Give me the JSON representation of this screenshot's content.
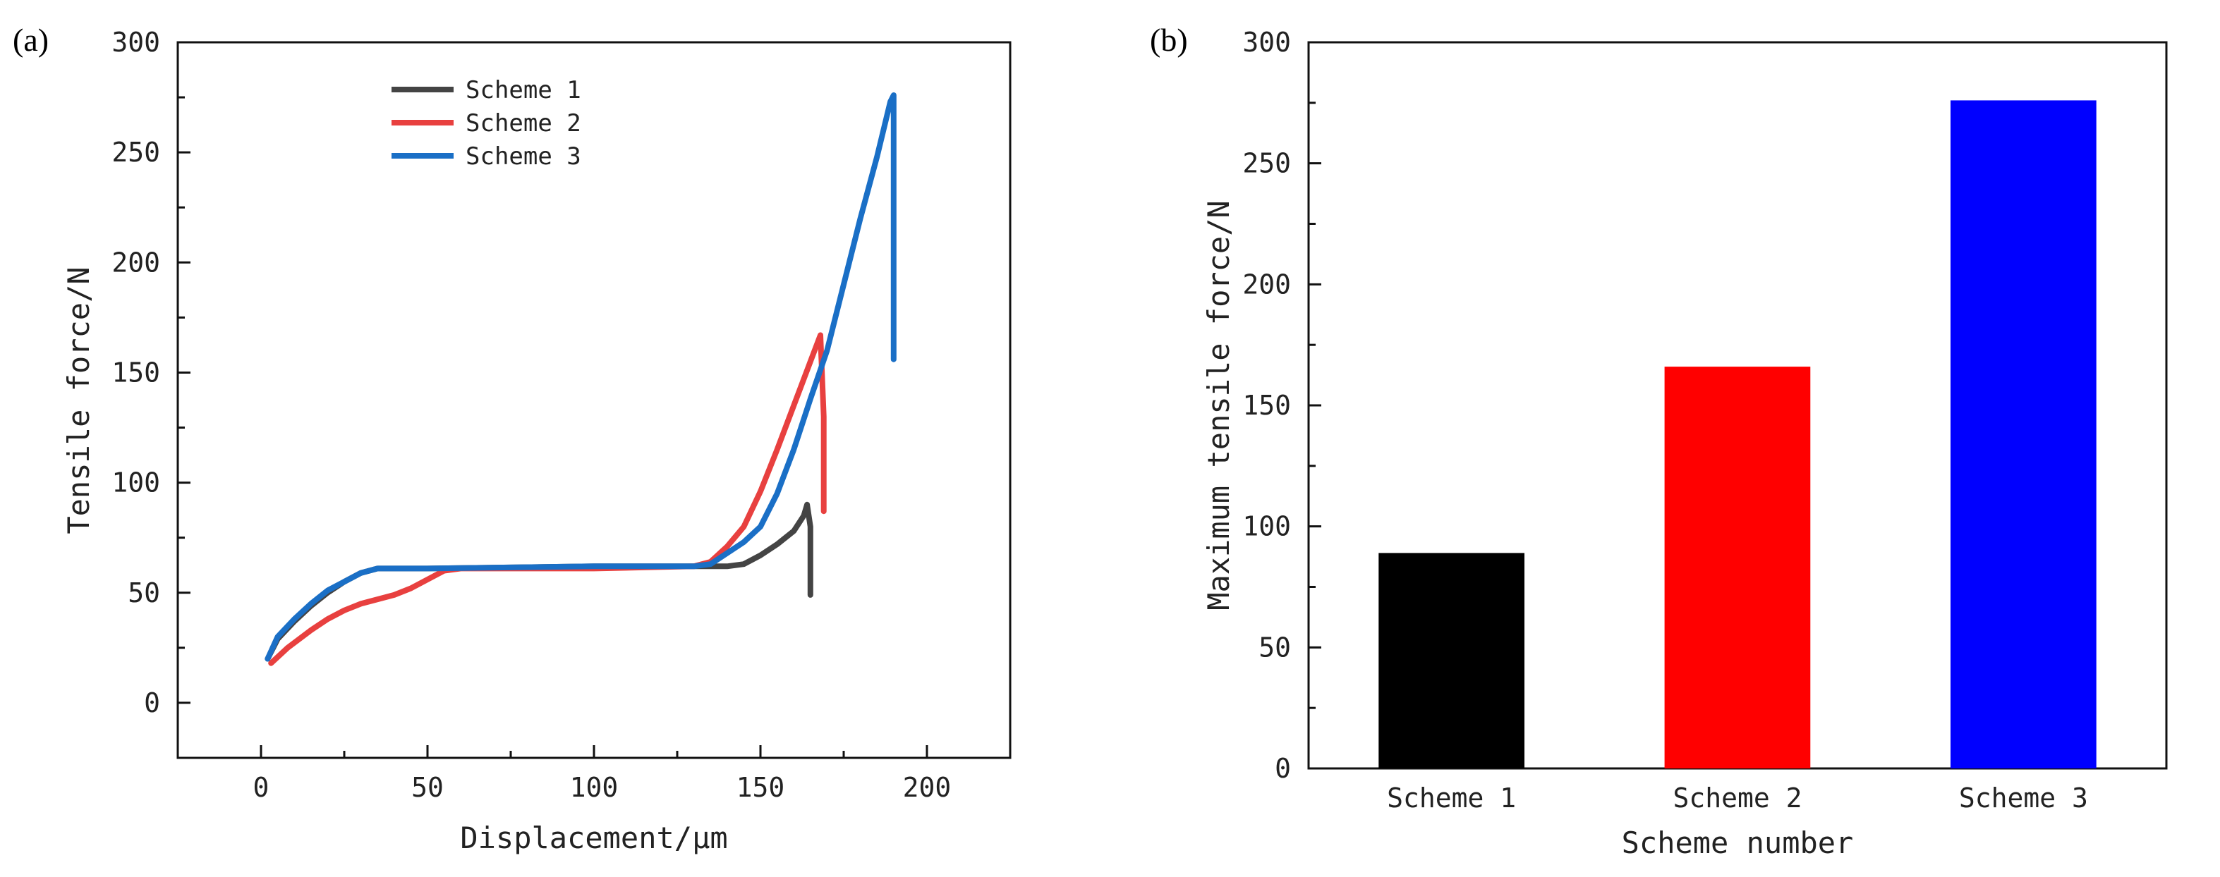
{
  "chart_data": [
    {
      "panel": "(a)",
      "type": "line",
      "title": "",
      "xlabel": "Displacement/μm",
      "ylabel": "Tensile force/N",
      "xlim": [
        -25,
        225
      ],
      "ylim": [
        -25,
        300
      ],
      "xticks": [
        0,
        50,
        100,
        150,
        200
      ],
      "yticks": [
        0,
        50,
        100,
        150,
        200,
        250,
        300
      ],
      "legend_placement": "top-center",
      "series": [
        {
          "name": "Scheme 1",
          "color": "#444444",
          "points": [
            [
              2,
              20
            ],
            [
              5,
              29
            ],
            [
              10,
              37
            ],
            [
              15,
              44
            ],
            [
              20,
              50
            ],
            [
              25,
              55
            ],
            [
              30,
              59
            ],
            [
              35,
              61
            ],
            [
              50,
              61
            ],
            [
              100,
              62
            ],
            [
              130,
              62
            ],
            [
              140,
              62
            ],
            [
              145,
              63
            ],
            [
              150,
              67
            ],
            [
              155,
              72
            ],
            [
              160,
              78
            ],
            [
              163,
              85
            ],
            [
              164,
              90
            ],
            [
              165,
              80
            ],
            [
              165,
              49
            ]
          ]
        },
        {
          "name": "Scheme 2",
          "color": "#e8403f",
          "points": [
            [
              3,
              18
            ],
            [
              8,
              25
            ],
            [
              15,
              33
            ],
            [
              20,
              38
            ],
            [
              25,
              42
            ],
            [
              30,
              45
            ],
            [
              40,
              49
            ],
            [
              45,
              52
            ],
            [
              50,
              56
            ],
            [
              55,
              60
            ],
            [
              60,
              61
            ],
            [
              100,
              61
            ],
            [
              130,
              62
            ],
            [
              135,
              64
            ],
            [
              140,
              71
            ],
            [
              145,
              80
            ],
            [
              150,
              96
            ],
            [
              155,
              115
            ],
            [
              160,
              135
            ],
            [
              165,
              155
            ],
            [
              168,
              167
            ],
            [
              169,
              130
            ],
            [
              169,
              87
            ]
          ]
        },
        {
          "name": "Scheme 3",
          "color": "#1a6fc6",
          "points": [
            [
              2,
              20
            ],
            [
              5,
              30
            ],
            [
              10,
              38
            ],
            [
              15,
              45
            ],
            [
              20,
              51
            ],
            [
              25,
              55
            ],
            [
              30,
              59
            ],
            [
              35,
              61
            ],
            [
              50,
              61
            ],
            [
              100,
              62
            ],
            [
              130,
              62
            ],
            [
              135,
              63
            ],
            [
              140,
              68
            ],
            [
              145,
              73
            ],
            [
              150,
              80
            ],
            [
              155,
              95
            ],
            [
              160,
              115
            ],
            [
              165,
              138
            ],
            [
              170,
              160
            ],
            [
              175,
              190
            ],
            [
              180,
              220
            ],
            [
              185,
              248
            ],
            [
              189,
              273
            ],
            [
              190,
              276
            ],
            [
              190,
              215
            ],
            [
              190,
              156
            ]
          ]
        }
      ]
    },
    {
      "panel": "(b)",
      "type": "bar",
      "title": "",
      "xlabel": "Scheme number",
      "ylabel": "Maximum tensile force/N",
      "ylim": [
        0,
        300
      ],
      "yticks": [
        0,
        50,
        100,
        150,
        200,
        250,
        300
      ],
      "categories": [
        "Scheme 1",
        "Scheme 2",
        "Scheme 3"
      ],
      "values": [
        89,
        166,
        276
      ],
      "colors": [
        "#000000",
        "#ff0000",
        "#0000ff"
      ]
    }
  ]
}
